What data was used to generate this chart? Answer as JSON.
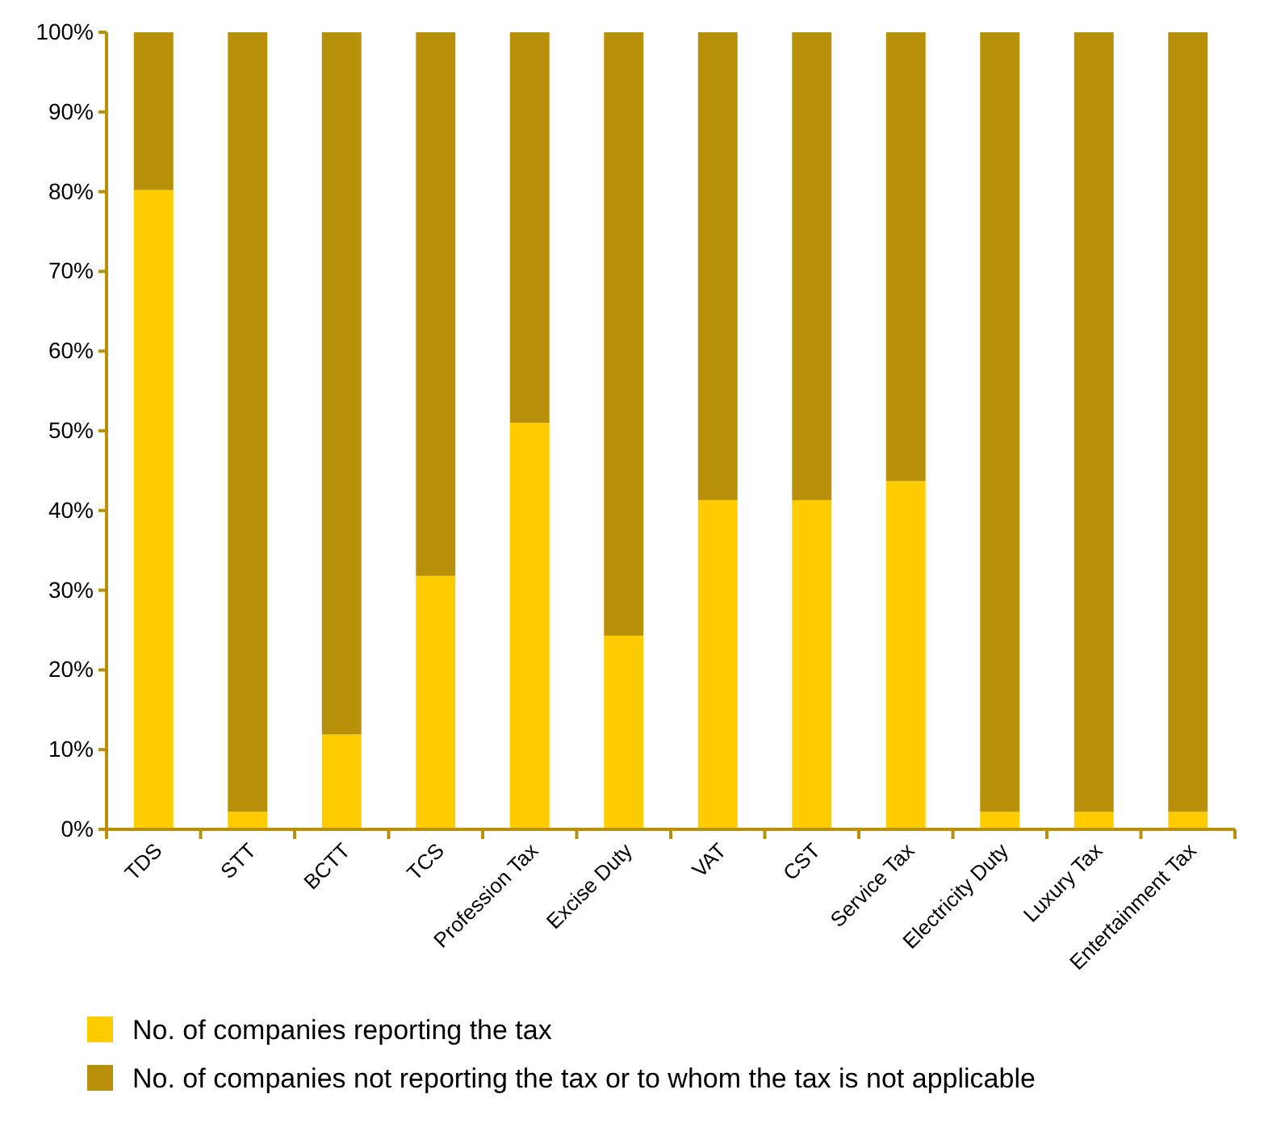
{
  "chart_data": {
    "type": "bar",
    "stacked": true,
    "categories": [
      "TDS",
      "STT",
      "BCTT",
      "TCS",
      "Profession Tax",
      "Excise Duty",
      "VAT",
      "CST",
      "Service Tax",
      "Electricity Duty",
      "Luxury Tax",
      "Entertainment Tax"
    ],
    "series": [
      {
        "name": "No. of companies reporting the tax",
        "color": "#ffcc00",
        "values": [
          80.2,
          2.2,
          11.9,
          31.8,
          51.0,
          24.3,
          41.3,
          41.3,
          43.7,
          2.2,
          2.2,
          2.2
        ]
      },
      {
        "name": "No. of companies not reporting the tax or to whom the tax is not applicable",
        "color": "#b8900a",
        "values": [
          19.8,
          97.8,
          88.1,
          68.2,
          49.0,
          75.7,
          58.7,
          58.7,
          56.3,
          97.8,
          97.8,
          97.8
        ]
      }
    ],
    "ylim": [
      0,
      100
    ],
    "yticks": [
      {
        "value": 0,
        "label": "0%"
      },
      {
        "value": 10,
        "label": "10%"
      },
      {
        "value": 20,
        "label": "20%"
      },
      {
        "value": 30,
        "label": "30%"
      },
      {
        "value": 40,
        "label": "40%"
      },
      {
        "value": 50,
        "label": "50%"
      },
      {
        "value": 60,
        "label": "60%"
      },
      {
        "value": 70,
        "label": "70%"
      },
      {
        "value": 80,
        "label": "80%"
      },
      {
        "value": 90,
        "label": "90%"
      },
      {
        "value": 100,
        "label": "100%"
      }
    ],
    "grid": false,
    "legend": "bottom"
  }
}
